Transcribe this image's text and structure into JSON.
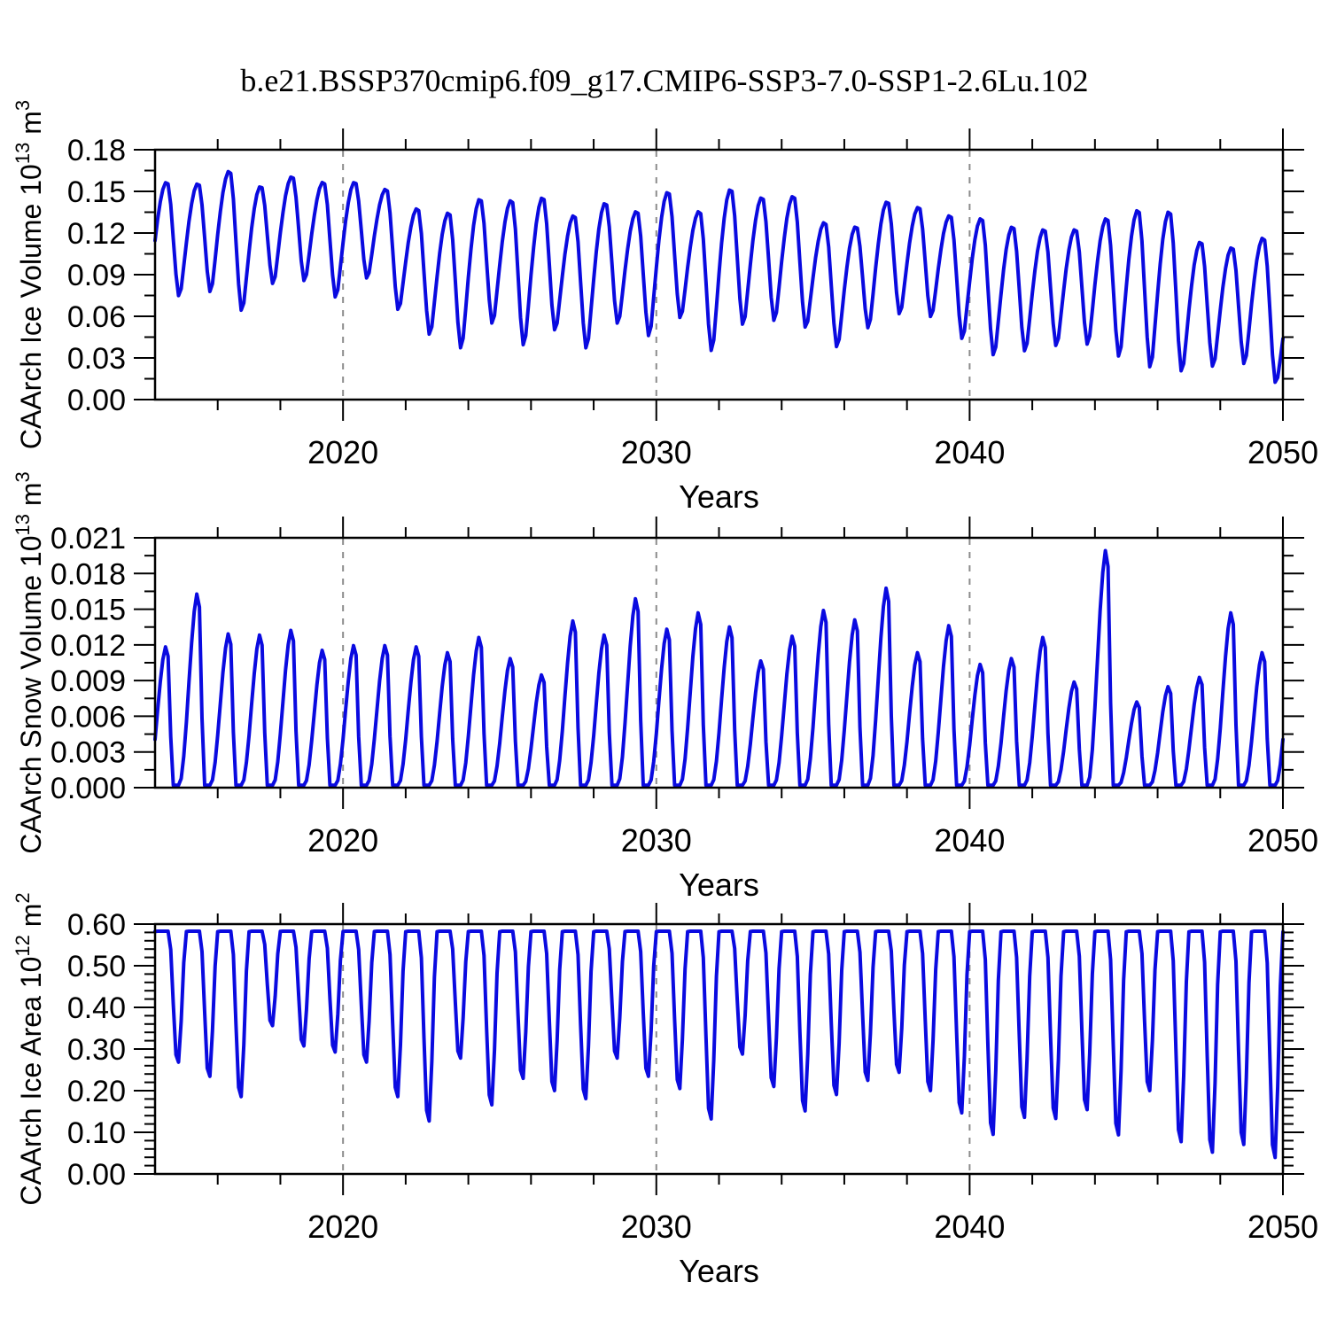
{
  "title": "b.e21.BSSP370cmip6.f09_g17.CMIP6-SSP3-7.0-SSP1-2.6Lu.102",
  "colors": {
    "line": "#0a0ae0",
    "frame": "#000000",
    "grid": "#8c8c8c",
    "text": "#000000",
    "background": "#ffffff"
  },
  "x_axis": {
    "label": "Years",
    "range": [
      2014,
      2050
    ],
    "major_ticks": [
      2020,
      2030,
      2040,
      2050
    ],
    "major_tick_labels": [
      "2020",
      "2030",
      "2040",
      "2050"
    ],
    "minor_tick_step": 2,
    "gridlines": [
      2020,
      2030,
      2040
    ]
  },
  "sampling": {
    "t_start": 2014.0,
    "t_end": 2050.0,
    "samples_per_year": 12
  },
  "chart_data": [
    {
      "type": "line",
      "name": "ice-volume",
      "ylabel_text": "CAArch Ice Volume 10^13 m^3",
      "ylabel": {
        "base": "CAArch Ice Volume 10",
        "exp": "13",
        "unit": " m",
        "unit_exp": "3"
      },
      "y_range": [
        0,
        0.18
      ],
      "y_major_step": 0.03,
      "y_minor_step": 0.015,
      "y_tick_labels": [
        "0.00",
        "0.03",
        "0.06",
        "0.09",
        "0.12",
        "0.15",
        "0.18"
      ],
      "pattern": "seasonal_minmax",
      "start_year": 2013,
      "peak_phase": 0.38,
      "trough_phase": 0.79,
      "annual_max": [
        0.15,
        0.157,
        0.156,
        0.165,
        0.154,
        0.161,
        0.157,
        0.157,
        0.152,
        0.138,
        0.135,
        0.145,
        0.144,
        0.146,
        0.133,
        0.142,
        0.136,
        0.15,
        0.136,
        0.152,
        0.146,
        0.147,
        0.128,
        0.125,
        0.143,
        0.139,
        0.133,
        0.131,
        0.125,
        0.123,
        0.123,
        0.131,
        0.137,
        0.136,
        0.114,
        0.11,
        0.117,
        0.08
      ],
      "annual_min": [
        0.075,
        0.073,
        0.076,
        0.062,
        0.082,
        0.084,
        0.072,
        0.086,
        0.063,
        0.045,
        0.035,
        0.053,
        0.037,
        0.048,
        0.035,
        0.053,
        0.044,
        0.057,
        0.033,
        0.052,
        0.055,
        0.05,
        0.036,
        0.05,
        0.06,
        0.058,
        0.042,
        0.03,
        0.033,
        0.037,
        0.038,
        0.029,
        0.021,
        0.018,
        0.022,
        0.024,
        0.01
      ]
    },
    {
      "type": "line",
      "name": "snow-volume",
      "ylabel_text": "CAArch Snow Volume 10^13 m^3",
      "ylabel": {
        "base": "CAArch Snow Volume 10",
        "exp": "13",
        "unit": " m",
        "unit_exp": "3"
      },
      "y_range": [
        0,
        0.021
      ],
      "y_major_step": 0.003,
      "y_minor_step": 0.0015,
      "y_tick_labels": [
        "0.000",
        "0.003",
        "0.006",
        "0.009",
        "0.012",
        "0.015",
        "0.018",
        "0.021"
      ],
      "pattern": "seasonal_peak_zero",
      "start_year": 2013,
      "peak_phase": 0.38,
      "melt_end_phase": 0.58,
      "rise_start_phase": 0.76,
      "zero_value": 0.0002,
      "annual_peak": [
        0.012,
        0.012,
        0.0165,
        0.0131,
        0.013,
        0.0134,
        0.0117,
        0.0121,
        0.0121,
        0.012,
        0.0115,
        0.0128,
        0.011,
        0.0096,
        0.0142,
        0.013,
        0.0161,
        0.0135,
        0.0149,
        0.0137,
        0.0108,
        0.0129,
        0.0151,
        0.0143,
        0.017,
        0.0115,
        0.0138,
        0.0105,
        0.011,
        0.0128,
        0.009,
        0.0202,
        0.0073,
        0.0086,
        0.0094,
        0.0149,
        0.0115,
        0.012
      ]
    },
    {
      "type": "line",
      "name": "ice-area",
      "ylabel_text": "CAArch Ice Area 10^12 m^2",
      "ylabel": {
        "base": "CAArch Ice Area 10",
        "exp": "12",
        "unit": " m",
        "unit_exp": "2"
      },
      "y_range": [
        0,
        0.6
      ],
      "y_major_step": 0.1,
      "y_minor_step": 0.02,
      "y_tick_labels": [
        "0.00",
        "0.10",
        "0.20",
        "0.30",
        "0.40",
        "0.50",
        "0.60"
      ],
      "pattern": "plateau_dip",
      "start_year": 2013,
      "plateau": 0.583,
      "dip_phase": 0.72,
      "dip_half_width": 0.29,
      "annual_min": [
        0.3,
        0.26,
        0.225,
        0.175,
        0.35,
        0.3,
        0.285,
        0.26,
        0.175,
        0.115,
        0.27,
        0.155,
        0.22,
        0.19,
        0.17,
        0.27,
        0.225,
        0.195,
        0.12,
        0.28,
        0.2,
        0.14,
        0.18,
        0.215,
        0.235,
        0.19,
        0.135,
        0.082,
        0.124,
        0.121,
        0.143,
        0.081,
        0.19,
        0.064,
        0.038,
        0.057,
        0.025
      ]
    }
  ]
}
